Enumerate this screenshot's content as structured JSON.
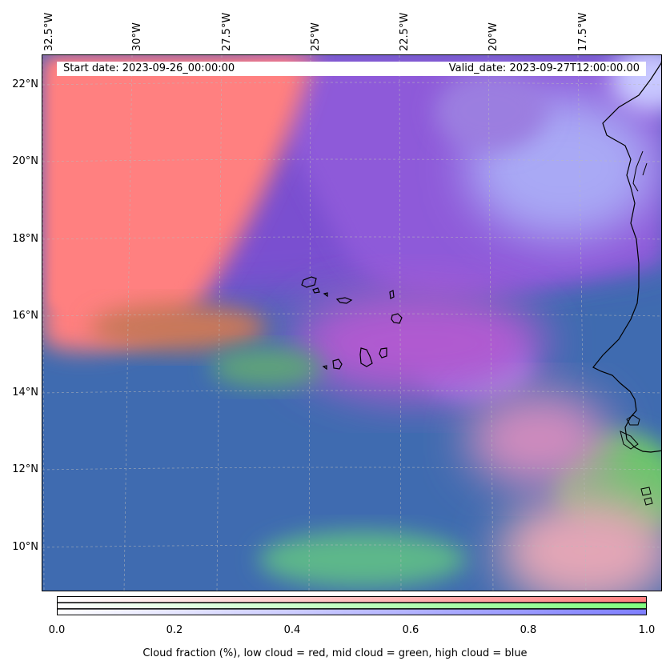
{
  "map": {
    "start_date": "Start date: 2023-09-26_00:00:00",
    "valid_date": "Valid_date: 2023-09-27T12:00:00.00",
    "lat_labels": [
      "22°N",
      "20°N",
      "18°N",
      "16°N",
      "14°N",
      "12°N",
      "10°N"
    ],
    "lon_labels": [
      "32.5°W",
      "30°W",
      "27.5°W",
      "25°W",
      "22.5°W",
      "20°W",
      "17.5°W"
    ],
    "colors": {
      "low_cloud": "#ff7f7f",
      "mid_cloud": "#7fff7f",
      "high_cloud": "#7f7fff",
      "coast": "#000000"
    },
    "features": [
      "Cape Verde islands",
      "West African coastline"
    ]
  },
  "colorbar": {
    "ticks": [
      "0.0",
      "0.2",
      "0.4",
      "0.6",
      "0.8",
      "1.0"
    ],
    "range": [
      0,
      1
    ],
    "caption": "Cloud fraction (%), low cloud = red, mid cloud = green, high cloud = blue"
  }
}
